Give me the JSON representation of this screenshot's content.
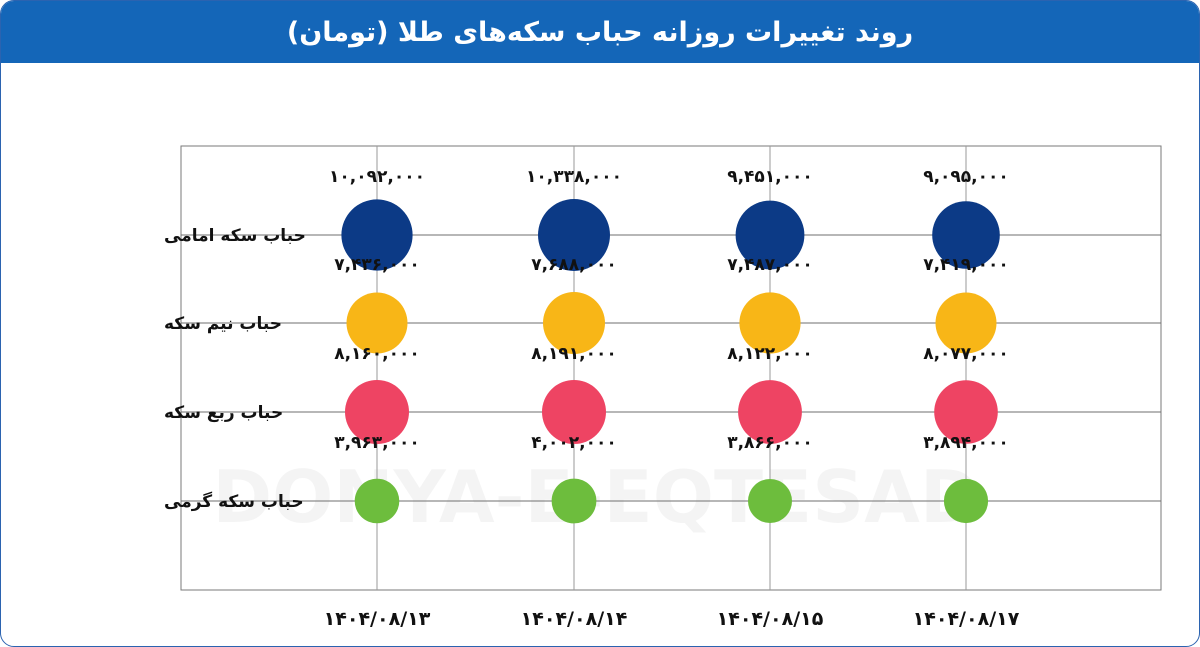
{
  "header": {
    "title": "روند تغییرات روزانه حباب سکه‌های طلا (تومان)"
  },
  "watermark": {
    "text": "DONYA-E-EQTESAD"
  },
  "chart_data": {
    "type": "scatter",
    "title": "روند تغییرات روزانه حباب سکه‌های طلا (تومان)",
    "x": [
      "۱۴۰۴/۰۸/۱۳",
      "۱۴۰۴/۰۸/۱۴",
      "۱۴۰۴/۰۸/۱۵",
      "۱۴۰۴/۰۸/۱۷"
    ],
    "categories": [
      "حباب سکه امامی",
      "حباب نیم سکه",
      "حباب ربع سکه",
      "حباب سکه گرمی"
    ],
    "series": [
      {
        "name": "حباب سکه امامی",
        "color": "#0c3a86",
        "values": [
          10092000,
          10338000,
          9451000,
          9095000
        ],
        "labels": [
          "۱۰,۰۹۲,۰۰۰",
          "۱۰,۳۳۸,۰۰۰",
          "۹,۴۵۱,۰۰۰",
          "۹,۰۹۵,۰۰۰"
        ]
      },
      {
        "name": "حباب نیم سکه",
        "color": "#f8b617",
        "values": [
          7436000,
          7688000,
          7487000,
          7419000
        ],
        "labels": [
          "۷,۴۳۶,۰۰۰",
          "۷,۶۸۸,۰۰۰",
          "۷,۴۸۷,۰۰۰",
          "۷,۴۱۹,۰۰۰"
        ]
      },
      {
        "name": "حباب ربع سکه",
        "color": "#ee4463",
        "values": [
          8160000,
          8191000,
          8122000,
          8077000
        ],
        "labels": [
          "۸,۱۶۰,۰۰۰",
          "۸,۱۹۱,۰۰۰",
          "۸,۱۲۲,۰۰۰",
          "۸,۰۷۷,۰۰۰"
        ]
      },
      {
        "name": "حباب سکه گرمی",
        "color": "#6dbd3d",
        "values": [
          3963000,
          4002000,
          3866000,
          3894000
        ],
        "labels": [
          "۳,۹۶۳,۰۰۰",
          "۴,۰۰۲,۰۰۰",
          "۳,۸۶۶,۰۰۰",
          "۳,۸۹۴,۰۰۰"
        ]
      }
    ],
    "grid": true,
    "bubble_size": "proportional to value"
  }
}
